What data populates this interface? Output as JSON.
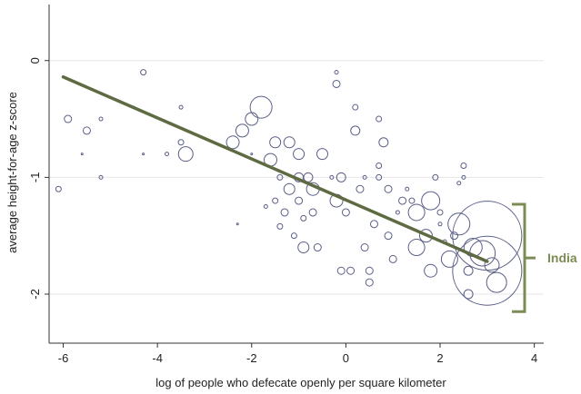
{
  "chart_data": {
    "type": "scatter",
    "title": "",
    "xlabel": "log of people who defecate openly per square kilometer",
    "ylabel": "average height-for-age z-score",
    "xlim": [
      -6.3,
      4.2
    ],
    "ylim": [
      -2.42,
      0.48
    ],
    "x_ticks": [
      -6,
      -4,
      -2,
      0,
      2,
      4
    ],
    "x_tick_labels": [
      "-6",
      "-4",
      "-2",
      "0",
      "2",
      "4"
    ],
    "y_ticks": [
      0,
      -1,
      -2
    ],
    "y_tick_labels": [
      "0",
      "-1",
      "-2"
    ],
    "grid": "horizontal",
    "bubble_size": "population",
    "colors": {
      "markers": "#5a5f86",
      "fit_line": "#5e6b42",
      "annotation": "#7d8c54",
      "grid": "#e6e6e6"
    },
    "fit_line": {
      "x": [
        -6.0,
        3.0
      ],
      "y": [
        -0.14,
        -1.72
      ]
    },
    "annotation": {
      "label": "India",
      "y_range": [
        -1.23,
        -2.15
      ]
    },
    "points": [
      {
        "x": -6.1,
        "y": -1.1,
        "r": 3
      },
      {
        "x": -5.9,
        "y": -0.5,
        "r": 4
      },
      {
        "x": -5.5,
        "y": -0.6,
        "r": 4
      },
      {
        "x": -5.2,
        "y": -0.5,
        "r": 2
      },
      {
        "x": -5.6,
        "y": -0.8,
        "r": 1
      },
      {
        "x": -5.2,
        "y": -1.0,
        "r": 2
      },
      {
        "x": -4.5,
        "y": -0.4,
        "r": 1
      },
      {
        "x": -4.3,
        "y": -0.1,
        "r": 3
      },
      {
        "x": -4.3,
        "y": -0.8,
        "r": 1
      },
      {
        "x": -3.8,
        "y": -0.8,
        "r": 2
      },
      {
        "x": -3.5,
        "y": -0.4,
        "r": 2
      },
      {
        "x": -3.5,
        "y": -0.7,
        "r": 3
      },
      {
        "x": -3.4,
        "y": -0.8,
        "r": 8
      },
      {
        "x": -2.4,
        "y": -0.7,
        "r": 7
      },
      {
        "x": -2.3,
        "y": -1.4,
        "r": 1
      },
      {
        "x": -2.2,
        "y": -0.6,
        "r": 7
      },
      {
        "x": -2.0,
        "y": -0.5,
        "r": 7
      },
      {
        "x": -2.0,
        "y": -0.8,
        "r": 1
      },
      {
        "x": -1.8,
        "y": -0.4,
        "r": 12
      },
      {
        "x": -1.6,
        "y": -0.85,
        "r": 7
      },
      {
        "x": -1.7,
        "y": -1.25,
        "r": 2
      },
      {
        "x": -1.5,
        "y": -0.7,
        "r": 6
      },
      {
        "x": -1.4,
        "y": -1.0,
        "r": 3
      },
      {
        "x": -1.5,
        "y": -1.2,
        "r": 3
      },
      {
        "x": -1.2,
        "y": -0.7,
        "r": 6
      },
      {
        "x": -1.2,
        "y": -1.1,
        "r": 6
      },
      {
        "x": -1.3,
        "y": -1.3,
        "r": 4
      },
      {
        "x": -1.4,
        "y": -1.42,
        "r": 3
      },
      {
        "x": -1.0,
        "y": -0.8,
        "r": 6
      },
      {
        "x": -1.0,
        "y": -1.0,
        "r": 5
      },
      {
        "x": -1.0,
        "y": -1.2,
        "r": 4
      },
      {
        "x": -0.9,
        "y": -1.35,
        "r": 3
      },
      {
        "x": -1.1,
        "y": -1.5,
        "r": 3
      },
      {
        "x": -0.9,
        "y": -1.6,
        "r": 6
      },
      {
        "x": -0.8,
        "y": -1.0,
        "r": 5
      },
      {
        "x": -0.7,
        "y": -1.1,
        "r": 7
      },
      {
        "x": -0.7,
        "y": -1.3,
        "r": 4
      },
      {
        "x": -0.6,
        "y": -1.6,
        "r": 4
      },
      {
        "x": -0.5,
        "y": -0.8,
        "r": 6
      },
      {
        "x": -0.3,
        "y": -1.0,
        "r": 2
      },
      {
        "x": -0.2,
        "y": -0.1,
        "r": 2
      },
      {
        "x": -0.2,
        "y": -0.2,
        "r": 4
      },
      {
        "x": -0.2,
        "y": -1.2,
        "r": 7
      },
      {
        "x": -0.1,
        "y": -1.0,
        "r": 5
      },
      {
        "x": -0.1,
        "y": -1.8,
        "r": 4
      },
      {
        "x": 0.0,
        "y": -1.3,
        "r": 4
      },
      {
        "x": 0.1,
        "y": -1.8,
        "r": 4
      },
      {
        "x": 0.2,
        "y": -0.6,
        "r": 5
      },
      {
        "x": 0.2,
        "y": -0.4,
        "r": 3
      },
      {
        "x": 0.3,
        "y": -1.1,
        "r": 4
      },
      {
        "x": 0.4,
        "y": -1.0,
        "r": 2
      },
      {
        "x": 0.4,
        "y": -1.6,
        "r": 4
      },
      {
        "x": 0.5,
        "y": -1.8,
        "r": 4
      },
      {
        "x": 0.5,
        "y": -1.9,
        "r": 4
      },
      {
        "x": 0.6,
        "y": -1.4,
        "r": 4
      },
      {
        "x": 0.7,
        "y": -0.5,
        "r": 3
      },
      {
        "x": 0.7,
        "y": -0.9,
        "r": 3
      },
      {
        "x": 0.7,
        "y": -1.0,
        "r": 3
      },
      {
        "x": 0.8,
        "y": -0.7,
        "r": 5
      },
      {
        "x": 0.9,
        "y": -1.1,
        "r": 4
      },
      {
        "x": 0.9,
        "y": -1.5,
        "r": 4
      },
      {
        "x": 1.0,
        "y": -1.7,
        "r": 4
      },
      {
        "x": 1.1,
        "y": -1.3,
        "r": 2
      },
      {
        "x": 1.2,
        "y": -1.2,
        "r": 4
      },
      {
        "x": 1.3,
        "y": -1.1,
        "r": 2
      },
      {
        "x": 1.4,
        "y": -1.2,
        "r": 3
      },
      {
        "x": 1.5,
        "y": -1.3,
        "r": 9
      },
      {
        "x": 1.5,
        "y": -1.6,
        "r": 9
      },
      {
        "x": 1.7,
        "y": -1.5,
        "r": 7
      },
      {
        "x": 1.8,
        "y": -1.2,
        "r": 10
      },
      {
        "x": 1.8,
        "y": -1.8,
        "r": 7
      },
      {
        "x": 1.9,
        "y": -1.0,
        "r": 3
      },
      {
        "x": 2.0,
        "y": -1.3,
        "r": 3
      },
      {
        "x": 2.0,
        "y": -1.4,
        "r": 2
      },
      {
        "x": 2.1,
        "y": -1.55,
        "r": 2
      },
      {
        "x": 2.2,
        "y": -1.7,
        "r": 9
      },
      {
        "x": 2.3,
        "y": -1.5,
        "r": 4
      },
      {
        "x": 2.4,
        "y": -1.4,
        "r": 12
      },
      {
        "x": 2.4,
        "y": -1.05,
        "r": 2
      },
      {
        "x": 2.5,
        "y": -0.9,
        "r": 3
      },
      {
        "x": 2.5,
        "y": -1.0,
        "r": 2
      },
      {
        "x": 2.6,
        "y": -1.8,
        "r": 5
      },
      {
        "x": 2.6,
        "y": -2.0,
        "r": 5
      },
      {
        "x": 2.7,
        "y": -1.6,
        "r": 10
      },
      {
        "x": 3.0,
        "y": -1.5,
        "r": 38
      },
      {
        "x": 3.0,
        "y": -1.8,
        "r": 38
      },
      {
        "x": 2.9,
        "y": -1.65,
        "r": 14
      },
      {
        "x": 3.1,
        "y": -1.75,
        "r": 8
      },
      {
        "x": 3.2,
        "y": -1.9,
        "r": 11
      }
    ]
  }
}
